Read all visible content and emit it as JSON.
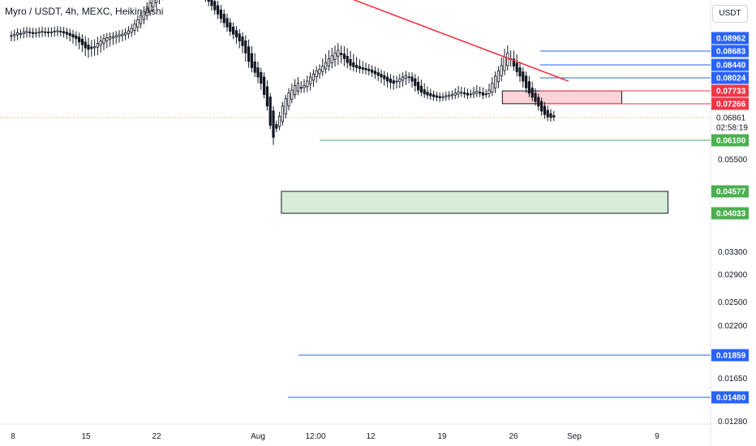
{
  "header": {
    "title": "Myro / USDT, 4h, MEXC, Heikin Ashi",
    "currency": "USDT"
  },
  "colors": {
    "blue": "#2962ff",
    "red": "#f23645",
    "green": "#4caf50",
    "dotted": "#f7a35c",
    "candle": "#131722"
  },
  "chart_data": {
    "type": "candlestick",
    "x_ticks": [
      "8",
      "15",
      "22",
      "Aug",
      "12:00",
      "12",
      "19",
      "26",
      "Sep",
      "9"
    ],
    "y_ticks": [
      "0.05500",
      "0.03300",
      "0.02900",
      "0.02500",
      "0.02200",
      "0.01650",
      "0.01280"
    ],
    "price_labels": [
      {
        "value": "0.08962",
        "kind": "blue"
      },
      {
        "value": "0.08683",
        "kind": "blue"
      },
      {
        "value": "0.08440",
        "kind": "blue"
      },
      {
        "value": "0.08024",
        "kind": "blue"
      },
      {
        "value": "0.07733",
        "kind": "red"
      },
      {
        "value": "0.07266",
        "kind": "red"
      },
      {
        "value": "0.06861",
        "kind": "plain"
      },
      {
        "value": "02:58:19",
        "kind": "plain"
      },
      {
        "value": "0.06100",
        "kind": "green"
      },
      {
        "value": "0.04577",
        "kind": "green"
      },
      {
        "value": "0.04033",
        "kind": "green"
      },
      {
        "value": "0.01859",
        "kind": "blue"
      },
      {
        "value": "0.01480",
        "kind": "blue"
      }
    ],
    "close": [
      0.0905,
      0.091,
      0.0915,
      0.0912,
      0.0918,
      0.092,
      0.0915,
      0.0912,
      0.0915,
      0.0918,
      0.092,
      0.0917,
      0.0915,
      0.0918,
      0.092,
      0.0922,
      0.0918,
      0.0914,
      0.091,
      0.0905,
      0.09,
      0.0895,
      0.0888,
      0.0882,
      0.0875,
      0.0872,
      0.0874,
      0.0878,
      0.0885,
      0.089,
      0.0895,
      0.0898,
      0.09,
      0.0902,
      0.0905,
      0.0908,
      0.091,
      0.0915,
      0.0922,
      0.093,
      0.0945,
      0.096,
      0.0975,
      0.099,
      0.1005,
      0.102,
      0.1035,
      0.1045,
      0.106,
      0.1075,
      0.109,
      0.11,
      0.1095,
      0.109,
      0.1085,
      0.108,
      0.1085,
      0.109,
      0.1095,
      0.11,
      0.1085,
      0.107,
      0.1055,
      0.104,
      0.1025,
      0.101,
      0.0995,
      0.098,
      0.0965,
      0.095,
      0.0935,
      0.092,
      0.091,
      0.09,
      0.089,
      0.088,
      0.0865,
      0.085,
      0.0835,
      0.082,
      0.0805,
      0.079,
      0.076,
      0.072,
      0.066,
      0.062,
      0.065,
      0.069,
      0.072,
      0.0745,
      0.0765,
      0.0775,
      0.0785,
      0.079,
      0.078,
      0.0785,
      0.0795,
      0.0805,
      0.0815,
      0.0825,
      0.083,
      0.084,
      0.0848,
      0.0855,
      0.086,
      0.0865,
      0.087,
      0.0862,
      0.0855,
      0.0848,
      0.0842,
      0.0838,
      0.0835,
      0.0832,
      0.083,
      0.0828,
      0.0825,
      0.082,
      0.0815,
      0.081,
      0.0805,
      0.08,
      0.0795,
      0.0792,
      0.079,
      0.0795,
      0.08,
      0.0805,
      0.081,
      0.0805,
      0.0795,
      0.0785,
      0.0775,
      0.0768,
      0.0762,
      0.0758,
      0.0755,
      0.0752,
      0.075,
      0.0748,
      0.0752,
      0.0756,
      0.0758,
      0.076,
      0.0765,
      0.077,
      0.0768,
      0.0762,
      0.0758,
      0.0762,
      0.0768,
      0.0772,
      0.0765,
      0.0758,
      0.0762,
      0.0775,
      0.079,
      0.0808,
      0.0825,
      0.0842,
      0.0858,
      0.0865,
      0.0855,
      0.084,
      0.0822,
      0.0808,
      0.0795,
      0.078,
      0.0765,
      0.075,
      0.0735,
      0.072,
      0.0705,
      0.0695,
      0.0688,
      0.0686,
      0.0688
    ],
    "trendline": {
      "from_x": 0.44,
      "from_price": 0.1085,
      "to_x": 0.8,
      "to_price": 0.0795
    },
    "zones": [
      {
        "kind": "red",
        "x0": 0.707,
        "x1": 0.875,
        "top_price": 0.0773,
        "bottom_price": 0.0727
      },
      {
        "kind": "green",
        "x0": 0.396,
        "x1": 0.94,
        "top_price": 0.04577,
        "bottom_price": 0.04033
      }
    ]
  }
}
